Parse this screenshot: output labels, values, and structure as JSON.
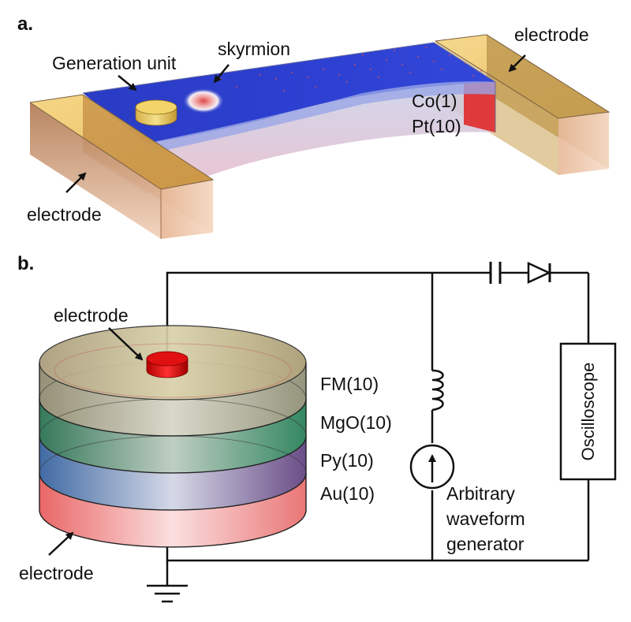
{
  "panel_a": {
    "label": "a.",
    "labels": {
      "generation_unit": "Generation unit",
      "skyrmion": "skyrmion",
      "electrode_right": "electrode",
      "electrode_left": "electrode",
      "co_layer": "Co(1)",
      "pt_layer": "Pt(10)"
    }
  },
  "panel_b": {
    "label": "b.",
    "labels": {
      "top_electrode": "electrode",
      "bottom_electrode": "electrode",
      "fm_layer": "FM(10)",
      "mgo_layer": "MgO(10)",
      "py_layer": "Py(10)",
      "au_layer": "Au(10)",
      "oscilloscope": "Oscilloscope",
      "generator_line1": "Arbitrary",
      "generator_line2": "waveform",
      "generator_line3": "generator"
    }
  },
  "colors": {
    "co_film": "#2438c8",
    "pt_film": "#e8c4d0",
    "electrode_gold": "#e8c060",
    "electrode_copper": "#c88a60",
    "fm_layer": "#b8a878",
    "mgo_layer": "#2a8a5a",
    "py_layer": "#3a6ab0",
    "au_layer": "#e85050"
  }
}
